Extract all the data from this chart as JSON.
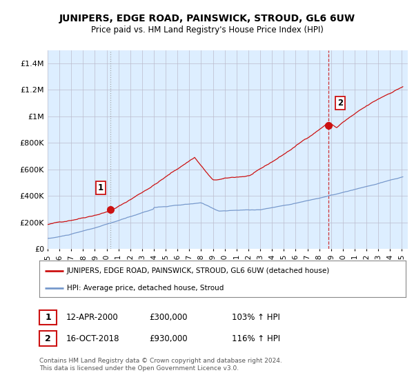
{
  "title": "JUNIPERS, EDGE ROAD, PAINSWICK, STROUD, GL6 6UW",
  "subtitle": "Price paid vs. HM Land Registry's House Price Index (HPI)",
  "legend_label_red": "JUNIPERS, EDGE ROAD, PAINSWICK, STROUD, GL6 6UW (detached house)",
  "legend_label_blue": "HPI: Average price, detached house, Stroud",
  "annotation1_label": "1",
  "annotation1_date": "12-APR-2000",
  "annotation1_price": "£300,000",
  "annotation1_hpi": "103% ↑ HPI",
  "annotation2_label": "2",
  "annotation2_date": "16-OCT-2018",
  "annotation2_price": "£930,000",
  "annotation2_hpi": "116% ↑ HPI",
  "footer": "Contains HM Land Registry data © Crown copyright and database right 2024.\nThis data is licensed under the Open Government Licence v3.0.",
  "ylim": [
    0,
    1500000
  ],
  "yticks": [
    0,
    200000,
    400000,
    600000,
    800000,
    1000000,
    1200000,
    1400000
  ],
  "ytick_labels": [
    "£0",
    "£200K",
    "£400K",
    "£600K",
    "£800K",
    "£1M",
    "£1.2M",
    "£1.4M"
  ],
  "background_color": "#ffffff",
  "plot_bg_color": "#ddeeff",
  "grid_color": "#bbbbcc",
  "red_color": "#cc1111",
  "blue_color": "#7799cc",
  "marker1_x": 2000.29,
  "marker1_y": 300000,
  "marker2_x": 2018.79,
  "marker2_y": 930000,
  "vline1_x": 2000.29,
  "vline2_x": 2018.79,
  "xmin": 1995.0,
  "xmax": 2025.5,
  "xticks": [
    1995,
    1996,
    1997,
    1998,
    1999,
    2000,
    2001,
    2002,
    2003,
    2004,
    2005,
    2006,
    2007,
    2008,
    2009,
    2010,
    2011,
    2012,
    2013,
    2014,
    2015,
    2016,
    2017,
    2018,
    2019,
    2020,
    2021,
    2022,
    2023,
    2024,
    2025
  ]
}
